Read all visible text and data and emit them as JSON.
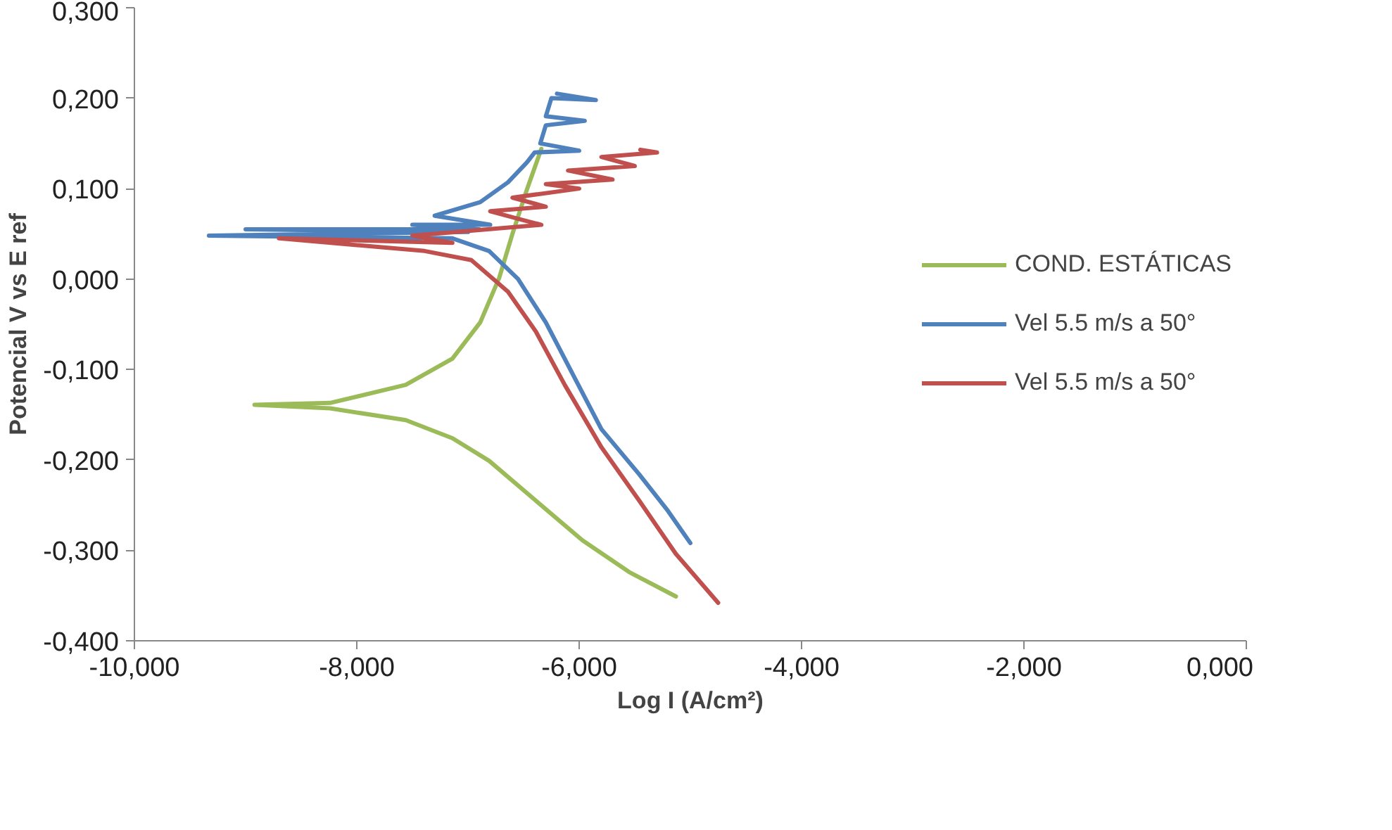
{
  "chart_data": {
    "type": "line",
    "xlabel": "Log I (A/cm²)",
    "ylabel": "Potencial V vs E ref",
    "xlim": [
      -10,
      0
    ],
    "ylim": [
      -0.4,
      0.3
    ],
    "xticks": [
      {
        "value": -10,
        "label": "-10,000"
      },
      {
        "value": -8,
        "label": "-8,000"
      },
      {
        "value": -6,
        "label": "-6,000"
      },
      {
        "value": -4,
        "label": "-4,000"
      },
      {
        "value": -2,
        "label": "-2,000"
      },
      {
        "value": 0,
        "label": "0,000"
      }
    ],
    "yticks": [
      {
        "value": -0.4,
        "label": "-0,400"
      },
      {
        "value": -0.3,
        "label": "-0,300"
      },
      {
        "value": -0.2,
        "label": "-0,200"
      },
      {
        "value": -0.1,
        "label": "-0,100"
      },
      {
        "value": 0,
        "label": "0,000"
      },
      {
        "value": 0.1,
        "label": "0,100"
      },
      {
        "value": 0.2,
        "label": "0,200"
      },
      {
        "value": 0.3,
        "label": "0,300"
      }
    ],
    "grid": false,
    "legend": "right",
    "marker": "none",
    "line_style": "solid",
    "series": [
      {
        "name": "COND. ESTÁTICAS",
        "color": "#9bbb59",
        "x": [
          -6.34,
          -6.47,
          -6.6,
          -6.72,
          -6.89,
          -7.14,
          -7.56,
          -8.24,
          -8.92,
          -8.24,
          -7.56,
          -7.14,
          -6.81,
          -6.39,
          -5.97,
          -5.55,
          -5.13
        ],
        "values": [
          0.144,
          0.099,
          0.05,
          0.001,
          -0.048,
          -0.088,
          -0.117,
          -0.137,
          -0.139,
          -0.143,
          -0.156,
          -0.176,
          -0.201,
          -0.245,
          -0.289,
          -0.324,
          -0.351
        ]
      },
      {
        "name": "Vel 5.5 m/s a 50°",
        "color": "#4f81bd",
        "x": [
          -5.0,
          -5.21,
          -5.46,
          -5.8,
          -6.05,
          -6.3,
          -6.55,
          -6.81,
          -7.14,
          -9.33,
          -7.0,
          -9.0,
          -6.9,
          -7.5,
          -6.8,
          -7.3,
          -6.89,
          -6.64,
          -6.47,
          -6.4,
          -6.0,
          -6.35,
          -6.3,
          -5.95,
          -6.3,
          -6.25,
          -5.85,
          -6.2
        ],
        "values": [
          -0.292,
          -0.255,
          -0.216,
          -0.166,
          -0.107,
          -0.048,
          0.0,
          0.031,
          0.045,
          0.048,
          0.052,
          0.055,
          0.055,
          0.06,
          0.06,
          0.07,
          0.085,
          0.107,
          0.129,
          0.14,
          0.142,
          0.15,
          0.17,
          0.175,
          0.18,
          0.2,
          0.198,
          0.205
        ]
      },
      {
        "name": "Vel 5.5 m/s a 50°",
        "color": "#c0504d",
        "x": [
          -4.75,
          -5.13,
          -5.46,
          -5.8,
          -6.13,
          -6.39,
          -6.64,
          -6.97,
          -7.39,
          -8.7,
          -7.14,
          -7.5,
          -6.34,
          -6.5,
          -6.8,
          -6.3,
          -6.6,
          -6.0,
          -6.3,
          -5.7,
          -6.1,
          -5.5,
          -5.8,
          -5.3,
          -5.45
        ],
        "values": [
          -0.358,
          -0.304,
          -0.245,
          -0.186,
          -0.117,
          -0.058,
          -0.014,
          0.021,
          0.031,
          0.045,
          0.04,
          0.048,
          0.06,
          0.065,
          0.075,
          0.08,
          0.09,
          0.1,
          0.105,
          0.11,
          0.12,
          0.125,
          0.135,
          0.14,
          0.143
        ]
      }
    ]
  }
}
